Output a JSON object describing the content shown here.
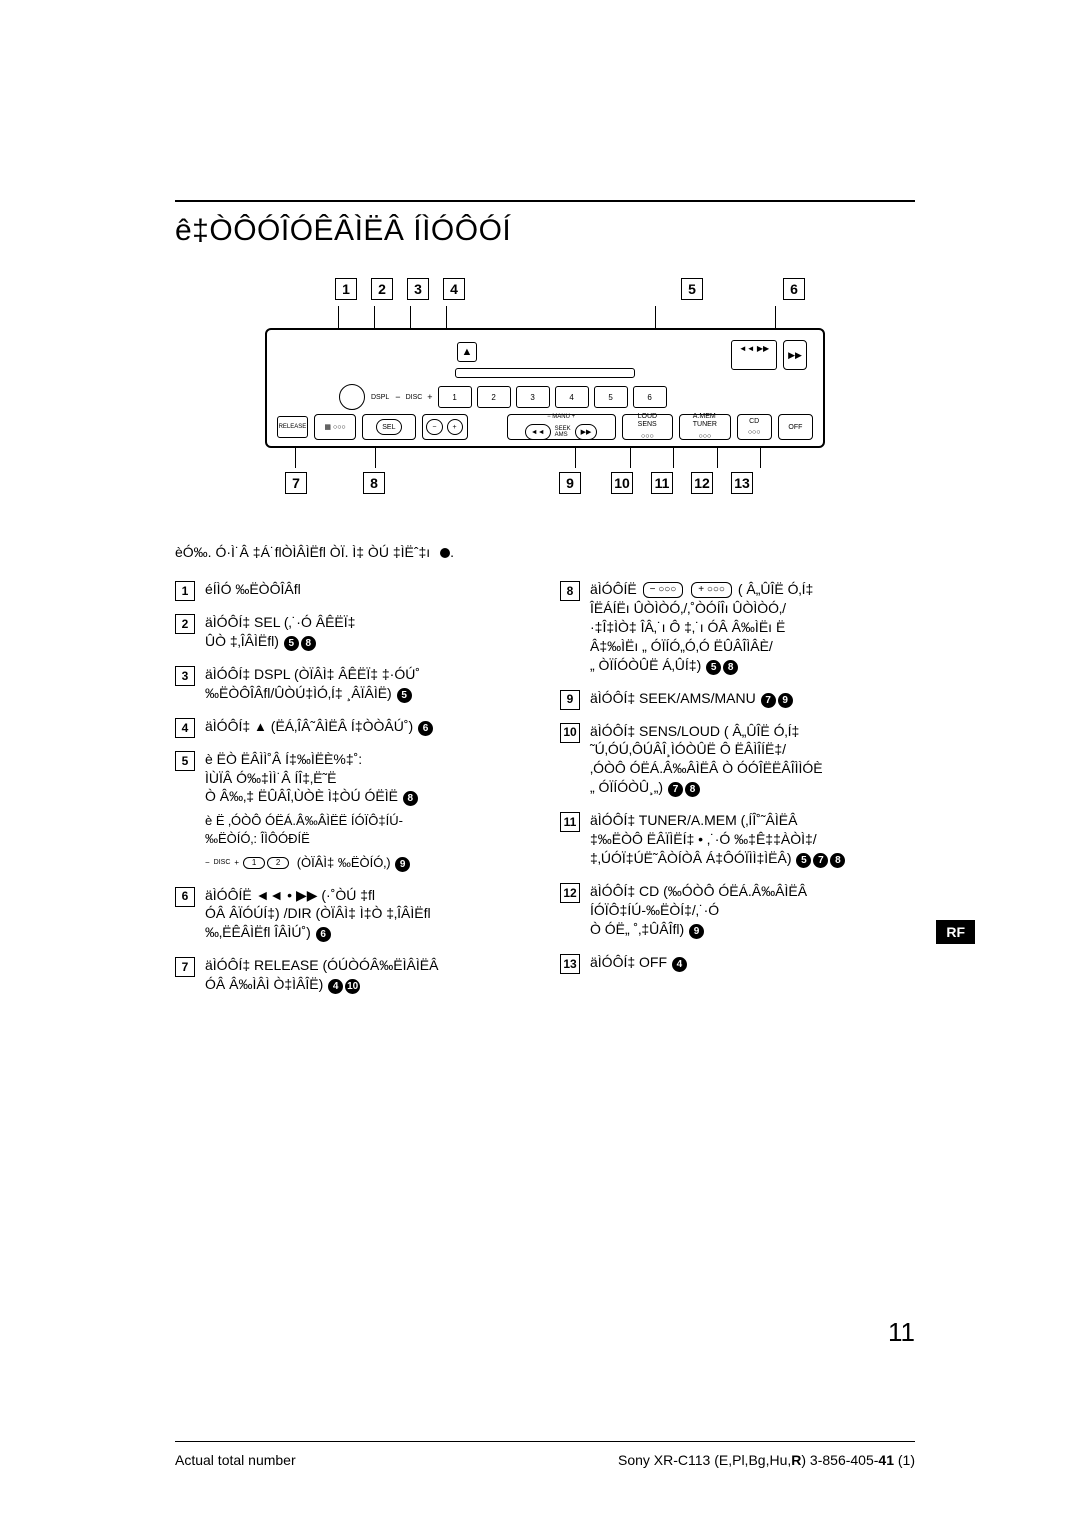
{
  "title": "ê‡ÒÔÓÎÓÊÂÌËÂ ÍÌÓÔÓÍ",
  "lead_note": "èÓ‰. Ó·Ì˙Â ‡Á˙ﬂÒÌÂÌËﬂ ÒÏ. Ì‡ ÒÚ ‡ÌËˆ‡ı",
  "callouts_top": [
    "1",
    "2",
    "3",
    "4",
    "5",
    "6"
  ],
  "callouts_bottom": [
    "7",
    "8",
    "9",
    "10",
    "11",
    "12",
    "13"
  ],
  "device": {
    "eject": "▲",
    "seek_preview": "◄◄ ▶▶",
    "dspl": "DSPL",
    "disc": "DISC",
    "presets": [
      "1",
      "2",
      "3",
      "4",
      "5",
      "6"
    ],
    "release": "RELEASE",
    "sel": "SEL",
    "vol_minus": "−",
    "vol_plus": "+",
    "manu": "MANU",
    "seek_ams": "SEEK\nAMS",
    "seek_left": "◄◄",
    "seek_right": "▶▶",
    "loud_sens": "LOUD\nSENS",
    "tuner_amem": "A.MEM\nTUNER",
    "cd": "CD",
    "off": "OFF",
    "knob": "▶▶"
  },
  "left_items": [
    {
      "n": "1",
      "text": "éÍÌÓ ‰ËÒÔÎÂﬂ"
    },
    {
      "n": "2",
      "text": "äÌÓÔÍ‡ SEL (‚˙·Ó   ÂÊËÏ‡\nÛÒ ‡‚ÎÂÌËﬂ)",
      "refs": [
        "5",
        "8"
      ]
    },
    {
      "n": "3",
      "text": "äÌÓÔÍ‡ DSPL (ÒÏÂÌ‡  ÂÊËÏ‡ ‡·ÓÚ˚\n‰ËÒÔÎÂﬂ/ÛÒÚ‡ÌÓ‚Í‡ ¸ÂÏÂÌË)",
      "refs": [
        "5"
      ]
    },
    {
      "n": "4",
      "text": "äÌÓÔÍ‡ <span class='eject-sym'>▲</span> (ËÁ‚ÎÂ˜ÂÌËÂ Í‡ÒÒÂÚ˚)",
      "refs": [
        "6"
      ]
    },
    {
      "n": "5",
      "text": "è ËÒ ËÂÌÌ˚Â Í‡‰ÌËÈ%‡˚:\nÌÙÏÂ Ó‰‡ÌÌ˙Â   ÍÎ‡‚Ë˜Ë\nÒ Â‰‚‡ ËÛÂÎ‚ÙÒÈ Ì‡ÒÚ ÓËÌË",
      "refs": [
        "8"
      ],
      "extra": "è Ë ‚ÓÒÔ ÓËÁ.Â‰ÂÌËË ÍÓÏÔ‡ÍÚ-\n‰ËÒÍÓ‚: ÎÌÔÓÐÍË",
      "disc_pills": true
    },
    {
      "n": "6",
      "text": "äÌÓÔÍË ◄◄ • ▶▶ (·˚ÒÚ ‡ﬂ\nÓÂ ÂÏÓÚÍ‡) /DIR (ÒÏÂÌ‡ Ì‡Ò ‡‚ÎÂÌËﬂ\n‰‚ËÊÂÌËﬂ  ÎÂÌÚ˚)",
      "refs": [
        "6"
      ]
    },
    {
      "n": "7",
      "text": "äÌÓÔÍ‡ RELEASE (ÓÚÒÓÂ‰ËÌÂÌËÂ\nÓÂ Â‰ÌÂÌ Ò‡ÌÂÎË)",
      "refs": [
        "4",
        "10"
      ]
    }
  ],
  "right_items": [
    {
      "n": "8",
      "text": "äÌÓÔÍË <span class='pill-inline'>−&nbsp;○○○</span> <span class='pill-inline'>+&nbsp;○○○</span> ( Â„ÛÎË Ó‚Í‡\nÎËÁÍËı  ÛÒÌÒÓ‚/‚˚ÒÓÍÎı  ÛÒÌÒÓ‚/\n·‡Î‡ÌÒ‡  ÎÂ‚˙ı  Ô ‡‚˙ı  ÓÂ Â‰ÌËı   Ë\nÂ‡‰ÌËı „ ÓÏÍÓ„Ó‚Ó ËÛÂÎÌÂÈ/\n„ ÒÏÍÓÒÛË Á‚ÛÍ‡)",
      "refs": [
        "5",
        "8"
      ]
    },
    {
      "n": "9",
      "text": "äÌÓÔÍ‡ SEEK/AMS/MANU",
      "refs": [
        "7",
        "9"
      ]
    },
    {
      "n": "10",
      "text": "äÌÓÔÍ‡ SENS/LOUD ( Â„ÛÎË Ó‚Í‡\n˜Ú‚ÓÚ‚ÔÚÂÎ¸ÌÓÒÛË  Ô ËÂÌÎÍË‡/\n‚ÓÒÔ ÓËÁ.Â‰ÂÌËÂ Ò ÓÓÎËËÂÎÌÌÓÈ\n„ ÓÏÍÓÒÛ¸„)",
      "refs": [
        "7",
        "8"
      ]
    },
    {
      "n": "11",
      "text": "äÌÓÔÍ‡ TUNER/A.MEM (‚ÍÎ˚˜ÂÌËÂ\n‡‰ËÒÔ ËÂÏÌËÍ‡ • ‚˙·Ó  ‰‡Ê‡‡ÀÒÌ‡/\n‡‚ÚÓÏ‡ÚË˜ÂÒÍÒÂ Á‡ÔÓÏÌÌ‡ÌËÂ)",
      "refs": [
        "5",
        "7",
        "8"
      ]
    },
    {
      "n": "12",
      "text": "äÌÓÔÍ‡ CD (‰ÓÒÔ ÓËÁ.Â‰ÂÌËÂ\nÍÓÏÔ‡ÍÚ-‰ËÒÍ‡/‚˙·Ó\nÒ ÓË„ ˚‚‡ÛÂÎﬂ)",
      "refs": [
        "9"
      ]
    },
    {
      "n": "13",
      "text": "äÌÓÔÍ‡ OFF",
      "refs": [
        "4"
      ]
    }
  ],
  "rf_badge": "RF",
  "page_number": "11",
  "footer_left": "Actual total number",
  "footer_right_a": "Sony XR-C113 (E,Pl,Bg,Hu,",
  "footer_right_b": "R",
  "footer_right_c": ") 3-856-405-",
  "footer_right_d": "41",
  "footer_right_e": " (1)",
  "disc_pill_labels": {
    "minus": "−",
    "one": "1",
    "two": "2",
    "plus_label": "(ÒÏÂÌ‡ ‰ËÒÍÓ‚)",
    "ref": "9",
    "disc_label": "DISC"
  }
}
